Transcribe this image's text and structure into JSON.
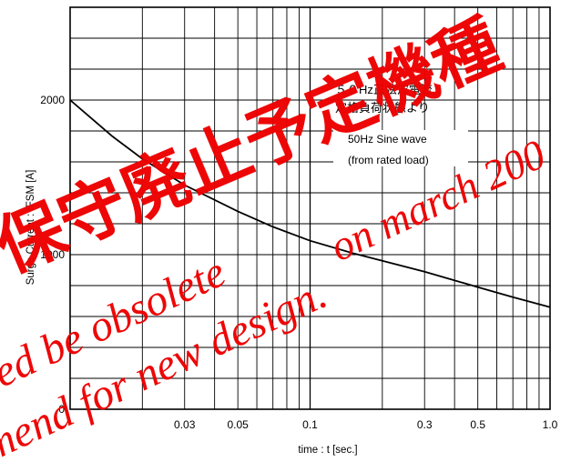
{
  "chart_data": {
    "type": "line",
    "xlabel": "time : t [sec.]",
    "ylabel": "Surge Current : IFSM [A]",
    "xscale": "log",
    "x_ticks": [
      0.03,
      0.05,
      0.1,
      0.3,
      0.5,
      1.0
    ],
    "x_tick_labels": [
      "0.03",
      "0.05",
      "0.1",
      "0.3",
      "0.5",
      "1.0"
    ],
    "y_ticks": [
      0,
      1000,
      2000
    ],
    "y_tick_labels": [
      "0",
      "1000",
      "2000"
    ],
    "xlim": [
      0.01,
      1.0
    ],
    "ylim": [
      0,
      2600
    ],
    "grid": true,
    "series": [
      {
        "x": [
          0.01,
          0.015,
          0.02,
          0.03,
          0.05,
          0.07,
          0.1,
          0.15,
          0.2,
          0.3,
          0.5,
          0.7,
          1.0
        ],
        "y": [
          2000,
          1765,
          1620,
          1450,
          1280,
          1180,
          1090,
          1010,
          960,
          890,
          790,
          725,
          660
        ]
      }
    ],
    "annotations": [
      "５０Hz正弦波電流",
      "定格負荷状態より",
      "50Hz Sine wave",
      "(from rated load)"
    ]
  },
  "watermarks": {
    "jp": "保守廃止予定機種",
    "line1": "on march 200",
    "line2": "led be obsolete",
    "line3": "mend for new design."
  }
}
